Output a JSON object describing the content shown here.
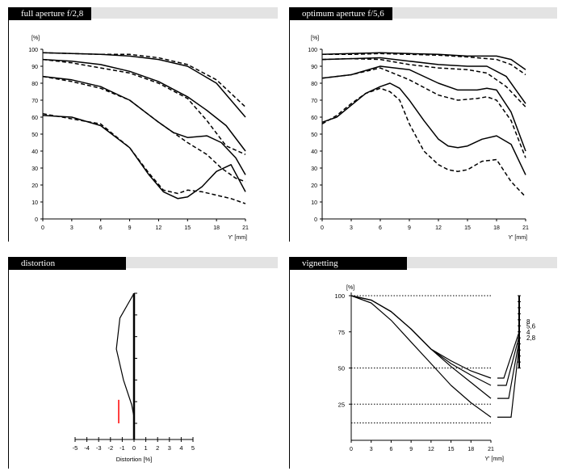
{
  "chart_data": [
    {
      "type": "line",
      "title": "full aperture  f/2,8",
      "ylabel": "[%]",
      "xlabel": "Y' [mm]",
      "xlim": [
        0,
        21
      ],
      "ylim": [
        0,
        100
      ],
      "xticks": [
        "0",
        "3",
        "6",
        "9",
        "12",
        "15",
        "18",
        "21"
      ],
      "yticks": [
        "0",
        "10",
        "20",
        "30",
        "40",
        "50",
        "60",
        "70",
        "80",
        "90",
        "100"
      ],
      "series": [
        {
          "style": "solid",
          "x": [
            0,
            3,
            6,
            9,
            12,
            15,
            18,
            21
          ],
          "y": [
            98,
            97.5,
            97,
            96,
            94,
            90,
            80,
            60
          ]
        },
        {
          "style": "dashed",
          "x": [
            0,
            3,
            6,
            9,
            12,
            15,
            18,
            21
          ],
          "y": [
            98,
            97.5,
            97,
            97,
            95,
            91,
            82,
            66
          ]
        },
        {
          "style": "solid",
          "x": [
            0,
            3,
            6,
            9,
            12,
            15,
            17,
            19,
            21
          ],
          "y": [
            94,
            93,
            91,
            87,
            81,
            72,
            64,
            55,
            40
          ]
        },
        {
          "style": "dashed",
          "x": [
            0,
            3,
            6,
            9,
            12,
            15,
            17,
            19,
            21
          ],
          "y": [
            94,
            92,
            89,
            86,
            80,
            71,
            58,
            43,
            38
          ]
        },
        {
          "style": "solid",
          "x": [
            0,
            3,
            6,
            9,
            12,
            13.5,
            15,
            17,
            18.5,
            20,
            21
          ],
          "y": [
            84,
            82,
            78,
            70,
            57,
            51,
            48,
            49,
            45,
            36,
            26
          ]
        },
        {
          "style": "dashed",
          "x": [
            0,
            3,
            6,
            9,
            12,
            13.5,
            15,
            17,
            18.5,
            20,
            21
          ],
          "y": [
            84,
            81,
            77,
            70,
            57,
            51,
            45,
            38,
            30,
            24,
            22
          ]
        },
        {
          "style": "solid",
          "x": [
            0,
            3,
            6,
            9,
            11,
            12.5,
            14,
            15,
            16.5,
            18,
            19.5,
            21
          ],
          "y": [
            61,
            60,
            55,
            42,
            26,
            16,
            12,
            13,
            19,
            28,
            32,
            16
          ]
        },
        {
          "style": "dashed",
          "x": [
            0,
            3,
            6,
            9,
            11,
            12.5,
            14,
            15,
            16.5,
            18,
            19.5,
            21
          ],
          "y": [
            62,
            59,
            56,
            42,
            27,
            17,
            15,
            17,
            16,
            14,
            12,
            9
          ]
        }
      ]
    },
    {
      "type": "line",
      "title": "optimum aperture f/5,6",
      "ylabel": "[%]",
      "xlabel": "Y' [mm]",
      "xlim": [
        0,
        21
      ],
      "ylim": [
        0,
        100
      ],
      "xticks": [
        "0",
        "3",
        "6",
        "9",
        "12",
        "15",
        "18",
        "21"
      ],
      "yticks": [
        "0",
        "10",
        "20",
        "30",
        "40",
        "50",
        "60",
        "70",
        "80",
        "90",
        "100"
      ],
      "series": [
        {
          "style": "solid",
          "x": [
            0,
            3,
            6,
            9,
            12,
            15,
            18,
            19.5,
            21
          ],
          "y": [
            97,
            97.5,
            98,
            97.5,
            97,
            96,
            96,
            94,
            88
          ]
        },
        {
          "style": "dashed",
          "x": [
            0,
            3,
            6,
            9,
            12,
            15,
            18,
            19.5,
            21
          ],
          "y": [
            97,
            97,
            97.5,
            97,
            96.5,
            95.5,
            94,
            91,
            85
          ]
        },
        {
          "style": "solid",
          "x": [
            0,
            3,
            6,
            9,
            12,
            15,
            17,
            19,
            20,
            21
          ],
          "y": [
            94,
            94.5,
            95,
            93,
            91,
            90,
            90,
            84,
            76,
            68
          ]
        },
        {
          "style": "dashed",
          "x": [
            0,
            3,
            6,
            9,
            12,
            15,
            17,
            19,
            20,
            21
          ],
          "y": [
            94,
            94.5,
            94,
            91,
            89,
            88,
            86,
            78,
            72,
            66
          ]
        },
        {
          "style": "solid",
          "x": [
            0,
            3,
            6,
            9,
            12,
            14,
            16,
            17,
            18,
            19.5,
            21
          ],
          "y": [
            83,
            85,
            90,
            88,
            80,
            76,
            76,
            77,
            76,
            63,
            40
          ]
        },
        {
          "style": "dashed",
          "x": [
            0,
            3,
            6,
            9,
            12,
            14,
            16,
            17,
            18,
            19.5,
            21
          ],
          "y": [
            83,
            85,
            89,
            82,
            73,
            70,
            71,
            72,
            70,
            58,
            36
          ]
        },
        {
          "style": "solid",
          "x": [
            0,
            1.5,
            3,
            4.5,
            6,
            7,
            8,
            9,
            10.5,
            12,
            13,
            14,
            15,
            16.5,
            18,
            19.5,
            21
          ],
          "y": [
            57,
            60,
            67,
            74,
            78,
            80,
            77,
            70,
            58,
            47,
            43,
            42,
            43,
            47,
            49,
            44,
            26
          ]
        },
        {
          "style": "dashed",
          "x": [
            0,
            1.5,
            3,
            4.5,
            6,
            7,
            8,
            9,
            10.5,
            12,
            13,
            14,
            15,
            16.5,
            18,
            19.5,
            21
          ],
          "y": [
            56,
            61,
            68,
            74,
            77,
            75,
            70,
            56,
            40,
            32,
            29,
            28,
            29,
            34,
            35,
            22,
            13
          ]
        }
      ]
    },
    {
      "type": "line",
      "title": "distortion",
      "xlabel": "Distortion [%]",
      "xlim": [
        -5,
        5
      ],
      "xticks": [
        "-5",
        "-4",
        "-3",
        "-2",
        "-1",
        "0",
        "1",
        "2",
        "3",
        "4",
        "5"
      ],
      "series": [
        {
          "style": "solid",
          "x": [
            0,
            -1.2,
            -1.5,
            -0.9,
            -0.2,
            0,
            0
          ],
          "y": [
            21,
            17,
            12,
            7,
            3,
            1,
            0
          ]
        }
      ],
      "reference_line": {
        "x": -1.3,
        "y_from": 0,
        "y_to": 3.8,
        "color": "#ff0000"
      }
    },
    {
      "type": "line",
      "title": "vignetting",
      "ylabel": "[%]",
      "xlabel": "Y' [mm]",
      "xlim": [
        0,
        21
      ],
      "ylim": [
        0,
        100
      ],
      "xticks": [
        "0",
        "3",
        "6",
        "9",
        "12",
        "15",
        "18",
        "21"
      ],
      "yticks": [
        "100",
        "75",
        "50",
        "25"
      ],
      "reference_levels": [
        100,
        50,
        25,
        12
      ],
      "series_labels": [
        "8",
        "5,6",
        "4",
        "2,8"
      ],
      "series": [
        {
          "name": "8",
          "style": "solid",
          "x": [
            0,
            3,
            6,
            9,
            12,
            15,
            18,
            21
          ],
          "y": [
            100,
            97,
            89,
            77,
            63,
            55,
            48,
            43
          ]
        },
        {
          "name": "5,6",
          "style": "solid",
          "x": [
            0,
            3,
            6,
            9,
            12,
            15,
            18,
            21
          ],
          "y": [
            100,
            97,
            89,
            77,
            63,
            53,
            45,
            38
          ]
        },
        {
          "name": "4",
          "style": "solid",
          "x": [
            0,
            3,
            6,
            9,
            12,
            15,
            18,
            21
          ],
          "y": [
            100,
            97,
            89,
            77,
            63,
            51,
            40,
            29
          ]
        },
        {
          "name": "2,8",
          "style": "solid",
          "x": [
            0,
            3,
            6,
            9,
            12,
            15,
            18,
            21
          ],
          "y": [
            100,
            95,
            83,
            68,
            53,
            38,
            26,
            16
          ]
        }
      ]
    }
  ]
}
